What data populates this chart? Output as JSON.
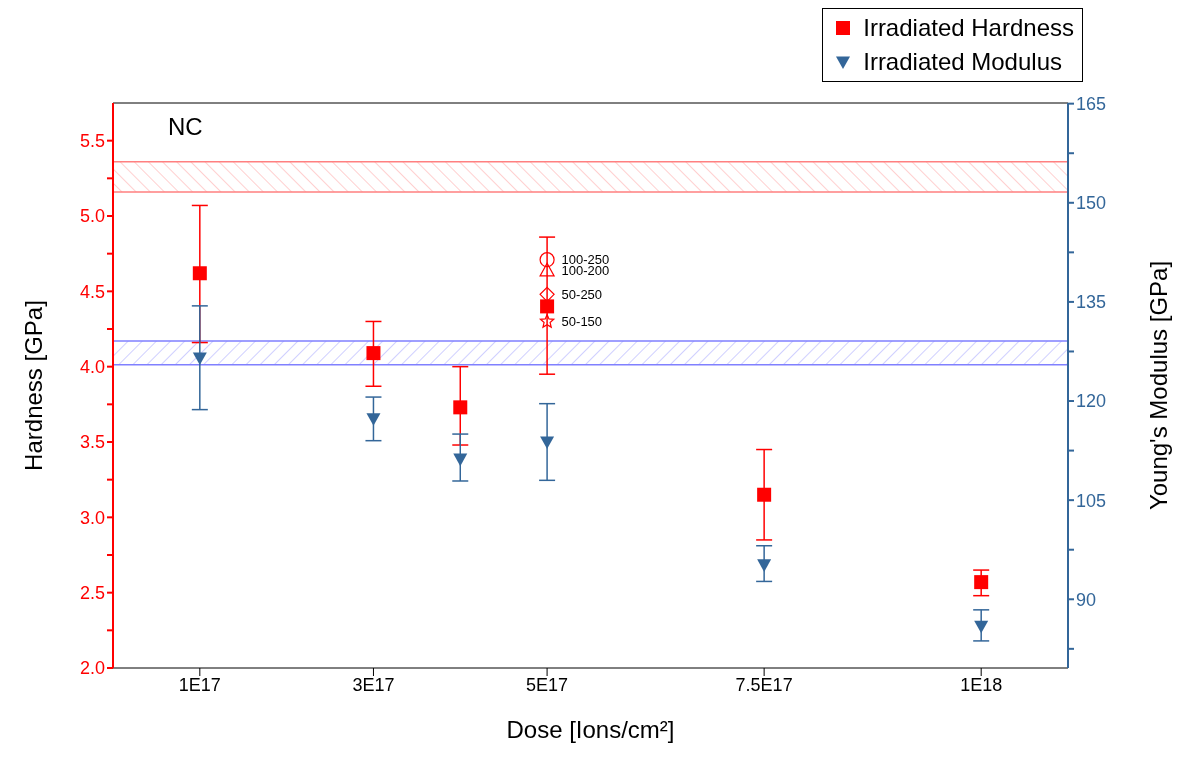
{
  "chart_data": {
    "type": "scatter",
    "xlabel": "Dose [Ions/cm²]",
    "ylabel": "Hardness [GPa]",
    "y2label": "Young's Modulus [GPa]",
    "x": [
      1e+17,
      3e+17,
      4e+17,
      5e+17,
      7.5e+17,
      1e+18
    ],
    "xlim": [
      0,
      1.1e+18
    ],
    "xticks": [
      {
        "value": 1e+17,
        "label": "1E17"
      },
      {
        "value": 3e+17,
        "label": "3E17"
      },
      {
        "value": 5e+17,
        "label": "5E17"
      },
      {
        "value": 7.5e+17,
        "label": "7.5E17"
      },
      {
        "value": 1e+18,
        "label": "1E18"
      }
    ],
    "ylim": [
      2,
      5.75
    ],
    "yticks": [
      {
        "value": 2.0,
        "label": "2.0"
      },
      {
        "value": 2.25,
        "label": null
      },
      {
        "value": 2.5,
        "label": "2.5"
      },
      {
        "value": 2.75,
        "label": null
      },
      {
        "value": 3.0,
        "label": "3.0"
      },
      {
        "value": 3.25,
        "label": null
      },
      {
        "value": 3.5,
        "label": "3.5"
      },
      {
        "value": 3.75,
        "label": null
      },
      {
        "value": 4.0,
        "label": "4.0"
      },
      {
        "value": 4.25,
        "label": null
      },
      {
        "value": 4.5,
        "label": "4.5"
      },
      {
        "value": 4.75,
        "label": null
      },
      {
        "value": 5.0,
        "label": "5.0"
      },
      {
        "value": 5.25,
        "label": null
      },
      {
        "value": 5.5,
        "label": "5.5"
      }
    ],
    "y2lim": [
      79.6,
      165.1
    ],
    "y2ticks": [
      {
        "value": 82.5,
        "label": null
      },
      90,
      {
        "value": 97.5,
        "label": null
      },
      105,
      {
        "value": 112.5,
        "label": null
      },
      120,
      {
        "value": 127.5,
        "label": null
      },
      135,
      {
        "value": 142.5,
        "label": null
      },
      150,
      {
        "value": 157.5,
        "label": null
      },
      165
    ],
    "series": [
      {
        "name": "Irradiated Hardness",
        "color": "#ff0000",
        "marker": "square",
        "values": [
          4.62,
          4.09,
          3.73,
          4.4,
          3.15,
          2.57
        ],
        "errors": [
          [
            4.16,
            5.07
          ],
          [
            3.87,
            4.3
          ],
          [
            3.48,
            4.0
          ],
          [
            3.95,
            4.86
          ],
          [
            2.85,
            3.45
          ],
          [
            2.48,
            2.65
          ]
        ]
      },
      {
        "name": "Irradiated Modulus",
        "color": "#336699",
        "marker": "triangle",
        "axis": "y2",
        "values": [
          126.5,
          117.3,
          111.2,
          113.8,
          95.2,
          85.9
        ],
        "errors": [
          [
            118.7,
            134.4
          ],
          [
            114.0,
            120.6
          ],
          [
            107.9,
            115.0
          ],
          [
            108.0,
            119.6
          ],
          [
            92.7,
            98.1
          ],
          [
            83.7,
            88.4
          ]
        ]
      },
      {
        "color": "#ff0000",
        "marker": "circle",
        "values": [
          null,
          null,
          null,
          4.71,
          null,
          null
        ],
        "value_labels": [
          null,
          null,
          null,
          "100-250",
          null,
          null
        ]
      },
      {
        "color": "#ff0000",
        "marker": "triangle",
        "values": [
          null,
          null,
          null,
          4.64,
          null,
          null
        ],
        "value_labels": [
          null,
          null,
          null,
          "100-200",
          null,
          null
        ]
      },
      {
        "color": "#ff0000",
        "marker": "diamond",
        "values": [
          null,
          null,
          null,
          4.48,
          null,
          null
        ],
        "value_labels": [
          null,
          null,
          null,
          "50-250",
          null,
          null
        ]
      },
      {
        "color": "#ff0000",
        "marker": "star",
        "values": [
          null,
          null,
          null,
          4.3,
          null,
          null
        ],
        "value_labels": [
          null,
          null,
          null,
          "50-150",
          null,
          null
        ]
      }
    ],
    "bands": [
      {
        "axis": "y",
        "from": 5.16,
        "to": 5.36,
        "color": "#ff8080"
      },
      {
        "axis": "y2",
        "from": 125.5,
        "to": 129.1,
        "color": "#8080ff"
      }
    ],
    "annotations": [
      "NC"
    ],
    "legend": "top right",
    "grid": false
  }
}
